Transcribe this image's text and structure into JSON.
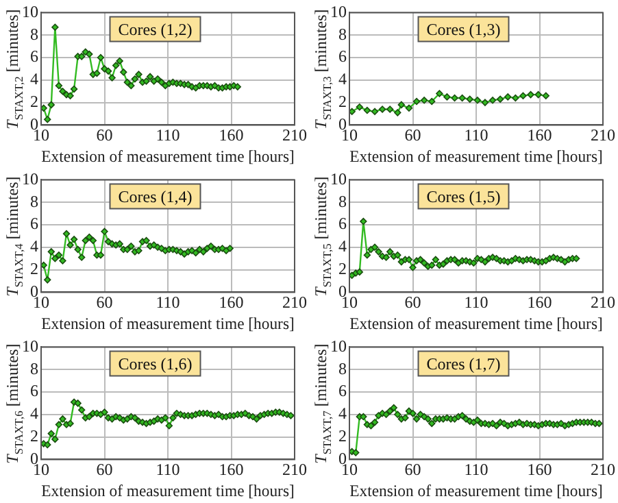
{
  "chart_data": [
    {
      "type": "line",
      "xlabel": "Extension of measurement time [hours]",
      "ylabel": "T$_{STAXT,2}$ [minutes]",
      "annotations": [
        "Cores (1,2)"
      ],
      "xlim": [
        10,
        210
      ],
      "ylim": [
        0,
        10
      ],
      "xticks": [
        10,
        60,
        110,
        160,
        210
      ],
      "yticks": [
        0,
        2,
        4,
        6,
        8,
        10
      ],
      "grid": true,
      "marker": "diamond",
      "line_style": "solid",
      "legend": false,
      "series": [
        {
          "color": "#33bb22",
          "x": [
            12,
            15,
            18,
            21,
            24,
            27,
            30,
            33,
            36,
            39,
            42,
            45,
            48,
            51,
            54,
            57,
            60,
            63,
            66,
            69,
            72,
            75,
            78,
            81,
            84,
            87,
            90,
            93,
            96,
            99,
            102,
            105,
            108,
            111,
            114,
            117,
            120,
            123,
            126,
            129,
            132,
            135,
            138,
            141,
            144,
            147,
            150,
            153,
            156,
            159,
            162,
            165
          ],
          "values": [
            1.5,
            0.5,
            1.8,
            8.7,
            3.5,
            3.0,
            2.7,
            2.6,
            3.2,
            6.1,
            6.1,
            6.5,
            6.3,
            4.5,
            4.6,
            6.0,
            5.0,
            4.8,
            4.2,
            5.3,
            5.7,
            4.7,
            3.8,
            3.5,
            4.1,
            4.5,
            3.8,
            3.9,
            4.3,
            3.9,
            4.1,
            3.8,
            3.5,
            3.7,
            3.8,
            3.7,
            3.7,
            3.6,
            3.6,
            3.4,
            3.3,
            3.5,
            3.5,
            3.5,
            3.4,
            3.5,
            3.3,
            3.3,
            3.4,
            3.4,
            3.5,
            3.4
          ]
        }
      ]
    },
    {
      "type": "line",
      "xlabel": "Extension of measurement time [hours]",
      "ylabel": "T$_{STAXT,3}$ [minutes]",
      "annotations": [
        "Cores (1,3)"
      ],
      "xlim": [
        10,
        210
      ],
      "ylim": [
        0,
        10
      ],
      "xticks": [
        10,
        60,
        110,
        160,
        210
      ],
      "yticks": [
        0,
        2,
        4,
        6,
        8,
        10
      ],
      "grid": true,
      "marker": "diamond",
      "line_style": "solid",
      "legend": false,
      "series": [
        {
          "color": "#33bb22",
          "x": [
            12,
            18,
            24,
            30,
            36,
            42,
            48,
            51,
            57,
            63,
            69,
            75,
            81,
            87,
            93,
            99,
            105,
            111,
            117,
            123,
            129,
            135,
            141,
            147,
            153,
            159,
            165
          ],
          "values": [
            1.2,
            1.6,
            1.3,
            1.2,
            1.4,
            1.4,
            1.1,
            1.8,
            1.5,
            2.1,
            2.2,
            2.1,
            2.8,
            2.5,
            2.4,
            2.4,
            2.3,
            2.2,
            2.0,
            2.2,
            2.3,
            2.5,
            2.4,
            2.6,
            2.7,
            2.7,
            2.6
          ]
        }
      ]
    },
    {
      "type": "line",
      "xlabel": "Extension of measurement time [hours]",
      "ylabel": "T$_{STAXT,4}$ [minutes]",
      "annotations": [
        "Cores (1,4)"
      ],
      "xlim": [
        10,
        210
      ],
      "ylim": [
        0,
        10
      ],
      "xticks": [
        10,
        60,
        110,
        160,
        210
      ],
      "yticks": [
        0,
        2,
        4,
        6,
        8,
        10
      ],
      "grid": true,
      "marker": "diamond",
      "line_style": "solid",
      "legend": false,
      "series": [
        {
          "color": "#33bb22",
          "x": [
            12,
            15,
            18,
            21,
            24,
            27,
            30,
            33,
            36,
            39,
            42,
            45,
            48,
            51,
            54,
            57,
            60,
            63,
            66,
            69,
            72,
            75,
            78,
            81,
            84,
            87,
            90,
            93,
            96,
            99,
            102,
            105,
            108,
            111,
            114,
            117,
            120,
            123,
            126,
            129,
            132,
            135,
            138,
            141,
            144,
            147,
            150,
            153,
            156,
            159
          ],
          "values": [
            2.4,
            1.1,
            3.6,
            3.0,
            3.3,
            2.8,
            5.2,
            4.2,
            4.7,
            3.8,
            3.1,
            4.6,
            4.9,
            4.6,
            3.3,
            3.3,
            5.4,
            4.5,
            4.3,
            4.2,
            4.3,
            3.8,
            3.8,
            4.1,
            3.6,
            3.7,
            4.5,
            4.6,
            4.1,
            4.2,
            4.0,
            3.9,
            3.7,
            3.8,
            3.8,
            3.7,
            3.6,
            3.4,
            3.6,
            3.7,
            3.5,
            3.8,
            3.6,
            3.9,
            4.1,
            3.8,
            3.8,
            3.9,
            3.7,
            3.9
          ]
        }
      ]
    },
    {
      "type": "line",
      "xlabel": "Extension of measurement time [hours]",
      "ylabel": "T$_{STAXT,5}$ [minutes]",
      "annotations": [
        "Cores (1,5)"
      ],
      "xlim": [
        10,
        210
      ],
      "ylim": [
        0,
        10
      ],
      "xticks": [
        10,
        60,
        110,
        160,
        210
      ],
      "yticks": [
        0,
        2,
        4,
        6,
        8,
        10
      ],
      "grid": true,
      "marker": "diamond",
      "line_style": "solid",
      "legend": false,
      "series": [
        {
          "color": "#33bb22",
          "x": [
            12,
            15,
            18,
            21,
            24,
            27,
            30,
            33,
            36,
            39,
            42,
            45,
            48,
            51,
            54,
            57,
            60,
            63,
            66,
            69,
            72,
            75,
            78,
            81,
            84,
            87,
            90,
            93,
            96,
            99,
            102,
            105,
            108,
            111,
            114,
            117,
            120,
            123,
            126,
            129,
            132,
            135,
            138,
            141,
            144,
            147,
            150,
            153,
            156,
            159,
            162,
            165,
            168,
            171,
            174,
            177,
            180,
            183,
            186,
            189
          ],
          "values": [
            1.5,
            1.7,
            1.8,
            6.3,
            3.3,
            3.8,
            4.0,
            3.6,
            3.2,
            3.1,
            3.6,
            3.2,
            3.3,
            2.7,
            2.9,
            2.9,
            2.2,
            2.8,
            2.9,
            2.6,
            2.3,
            2.4,
            2.9,
            2.4,
            2.5,
            2.8,
            2.9,
            2.9,
            2.6,
            2.8,
            2.8,
            2.7,
            2.6,
            3.0,
            2.9,
            2.7,
            3.0,
            3.1,
            3.0,
            2.8,
            2.8,
            2.7,
            2.8,
            3.0,
            2.9,
            2.8,
            2.9,
            2.9,
            2.8,
            2.7,
            2.7,
            2.8,
            3.0,
            3.1,
            3.0,
            2.9,
            2.7,
            2.9,
            3.0,
            3.0
          ]
        }
      ]
    },
    {
      "type": "line",
      "xlabel": "Extension of measurement time [hours]",
      "ylabel": "T$_{STAXT,6}$ [minutes]",
      "annotations": [
        "Cores (1,6)"
      ],
      "xlim": [
        10,
        210
      ],
      "ylim": [
        0,
        10
      ],
      "xticks": [
        10,
        60,
        110,
        160,
        210
      ],
      "yticks": [
        0,
        2,
        4,
        6,
        8,
        10
      ],
      "grid": true,
      "marker": "diamond",
      "line_style": "solid",
      "legend": false,
      "series": [
        {
          "color": "#33bb22",
          "x": [
            12,
            15,
            18,
            21,
            24,
            27,
            30,
            33,
            36,
            39,
            42,
            45,
            48,
            51,
            54,
            57,
            60,
            63,
            66,
            69,
            72,
            75,
            78,
            81,
            84,
            87,
            90,
            93,
            96,
            99,
            102,
            105,
            108,
            111,
            114,
            117,
            120,
            123,
            126,
            129,
            132,
            135,
            138,
            141,
            144,
            147,
            150,
            153,
            156,
            159,
            162,
            165,
            168,
            171,
            174,
            177,
            180,
            183,
            186,
            189,
            192,
            195,
            198,
            201,
            204,
            207
          ],
          "values": [
            1.4,
            1.3,
            2.3,
            1.8,
            3.1,
            3.6,
            3.1,
            3.2,
            5.1,
            5.0,
            4.4,
            3.7,
            3.8,
            4.1,
            4.1,
            4.0,
            4.2,
            3.7,
            3.6,
            3.8,
            3.7,
            3.5,
            3.6,
            3.8,
            3.7,
            3.4,
            3.3,
            3.2,
            3.3,
            3.4,
            3.6,
            3.5,
            3.7,
            3.0,
            3.7,
            4.1,
            4.0,
            3.9,
            3.9,
            3.9,
            4.0,
            4.1,
            4.1,
            4.1,
            4.0,
            3.9,
            4.0,
            3.8,
            3.8,
            3.9,
            3.9,
            4.0,
            4.0,
            4.1,
            3.9,
            3.8,
            3.6,
            3.9,
            4.0,
            4.1,
            4.1,
            4.2,
            4.2,
            4.1,
            4.0,
            3.9
          ]
        }
      ]
    },
    {
      "type": "line",
      "xlabel": "Extension of measurement time [hours]",
      "ylabel": "T$_{STAXT,7}$ [minutes]",
      "annotations": [
        "Cores (1,7)"
      ],
      "xlim": [
        10,
        210
      ],
      "ylim": [
        0,
        10
      ],
      "xticks": [
        10,
        60,
        110,
        160,
        210
      ],
      "yticks": [
        0,
        2,
        4,
        6,
        8,
        10
      ],
      "grid": true,
      "marker": "diamond",
      "line_style": "solid",
      "legend": false,
      "series": [
        {
          "color": "#33bb22",
          "x": [
            12,
            15,
            18,
            21,
            24,
            27,
            30,
            33,
            36,
            39,
            42,
            45,
            48,
            51,
            54,
            57,
            60,
            63,
            66,
            69,
            72,
            75,
            78,
            81,
            84,
            87,
            90,
            93,
            96,
            99,
            102,
            105,
            108,
            111,
            114,
            117,
            120,
            123,
            126,
            129,
            132,
            135,
            138,
            141,
            144,
            147,
            150,
            153,
            156,
            159,
            162,
            165,
            168,
            171,
            174,
            177,
            180,
            183,
            186,
            189,
            192,
            195,
            198,
            201,
            204,
            207
          ],
          "values": [
            0.7,
            0.6,
            3.8,
            3.8,
            3.1,
            3.0,
            3.3,
            3.9,
            4.1,
            4.0,
            4.3,
            4.6,
            4.0,
            3.6,
            3.7,
            4.3,
            4.1,
            3.6,
            4.0,
            3.8,
            3.6,
            3.2,
            3.6,
            3.6,
            3.6,
            3.7,
            3.6,
            3.6,
            3.8,
            3.9,
            3.6,
            3.4,
            3.3,
            3.5,
            3.2,
            3.2,
            3.1,
            3.2,
            3.0,
            3.3,
            3.2,
            3.0,
            3.1,
            3.2,
            3.3,
            3.1,
            3.2,
            3.1,
            3.1,
            3.0,
            3.1,
            3.2,
            3.2,
            3.1,
            3.1,
            3.2,
            3.0,
            3.1,
            3.2,
            3.3,
            3.3,
            3.3,
            3.3,
            3.3,
            3.2,
            3.2
          ]
        }
      ]
    }
  ]
}
